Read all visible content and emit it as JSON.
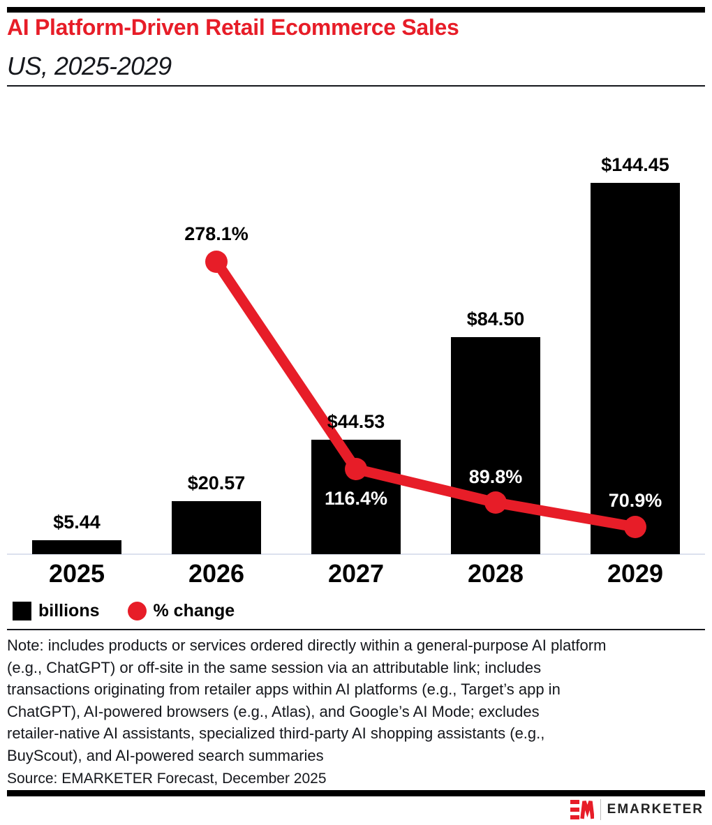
{
  "header": {
    "title": "AI Platform-Driven Retail Ecommerce Sales",
    "subtitle": "US, 2025-2029"
  },
  "colors": {
    "accent_red": "#e71d28",
    "bar_black": "#000000",
    "axis_line_gray": "#dce1ee",
    "text_ink": "#15171c"
  },
  "chart_data": {
    "type": "bar+line",
    "categories": [
      "2025",
      "2026",
      "2027",
      "2028",
      "2029"
    ],
    "series": [
      {
        "name": "billions",
        "type": "bar",
        "values": [
          5.44,
          20.57,
          44.53,
          84.5,
          144.45
        ],
        "labels": [
          "$5.44",
          "$20.57",
          "$44.53",
          "$84.50",
          "$144.45"
        ],
        "color": "#000000"
      },
      {
        "name": "% change",
        "type": "line",
        "values": [
          null,
          278.1,
          116.4,
          89.8,
          70.9
        ],
        "labels": [
          null,
          "278.1%",
          "116.4%",
          "89.8%",
          "70.9%"
        ],
        "color": "#e71d28"
      }
    ],
    "grid": false,
    "y_axis_shown": false,
    "legend_position": "bottom-left"
  },
  "legend": {
    "items": [
      {
        "label": "billions",
        "swatch": "black-square"
      },
      {
        "label": "% change",
        "swatch": "red-circle"
      }
    ]
  },
  "note_lines": [
    "Note: includes products or services ordered directly within a general-purpose AI platform",
    "(e.g., ChatGPT) or off-site in the same session via an attributable link; includes",
    "transactions originating from retailer apps within AI platforms (e.g., Target’s app in",
    "ChatGPT), AI-powered browsers (e.g., Atlas), and Google’s AI Mode; excludes",
    "retailer-native AI assistants, specialized third-party AI shopping assistants (e.g.,",
    "BuyScout), and AI-powered search summaries"
  ],
  "source": "Source: EMARKETER Forecast, December 2025",
  "footer": {
    "brand": "EMARKETER"
  }
}
